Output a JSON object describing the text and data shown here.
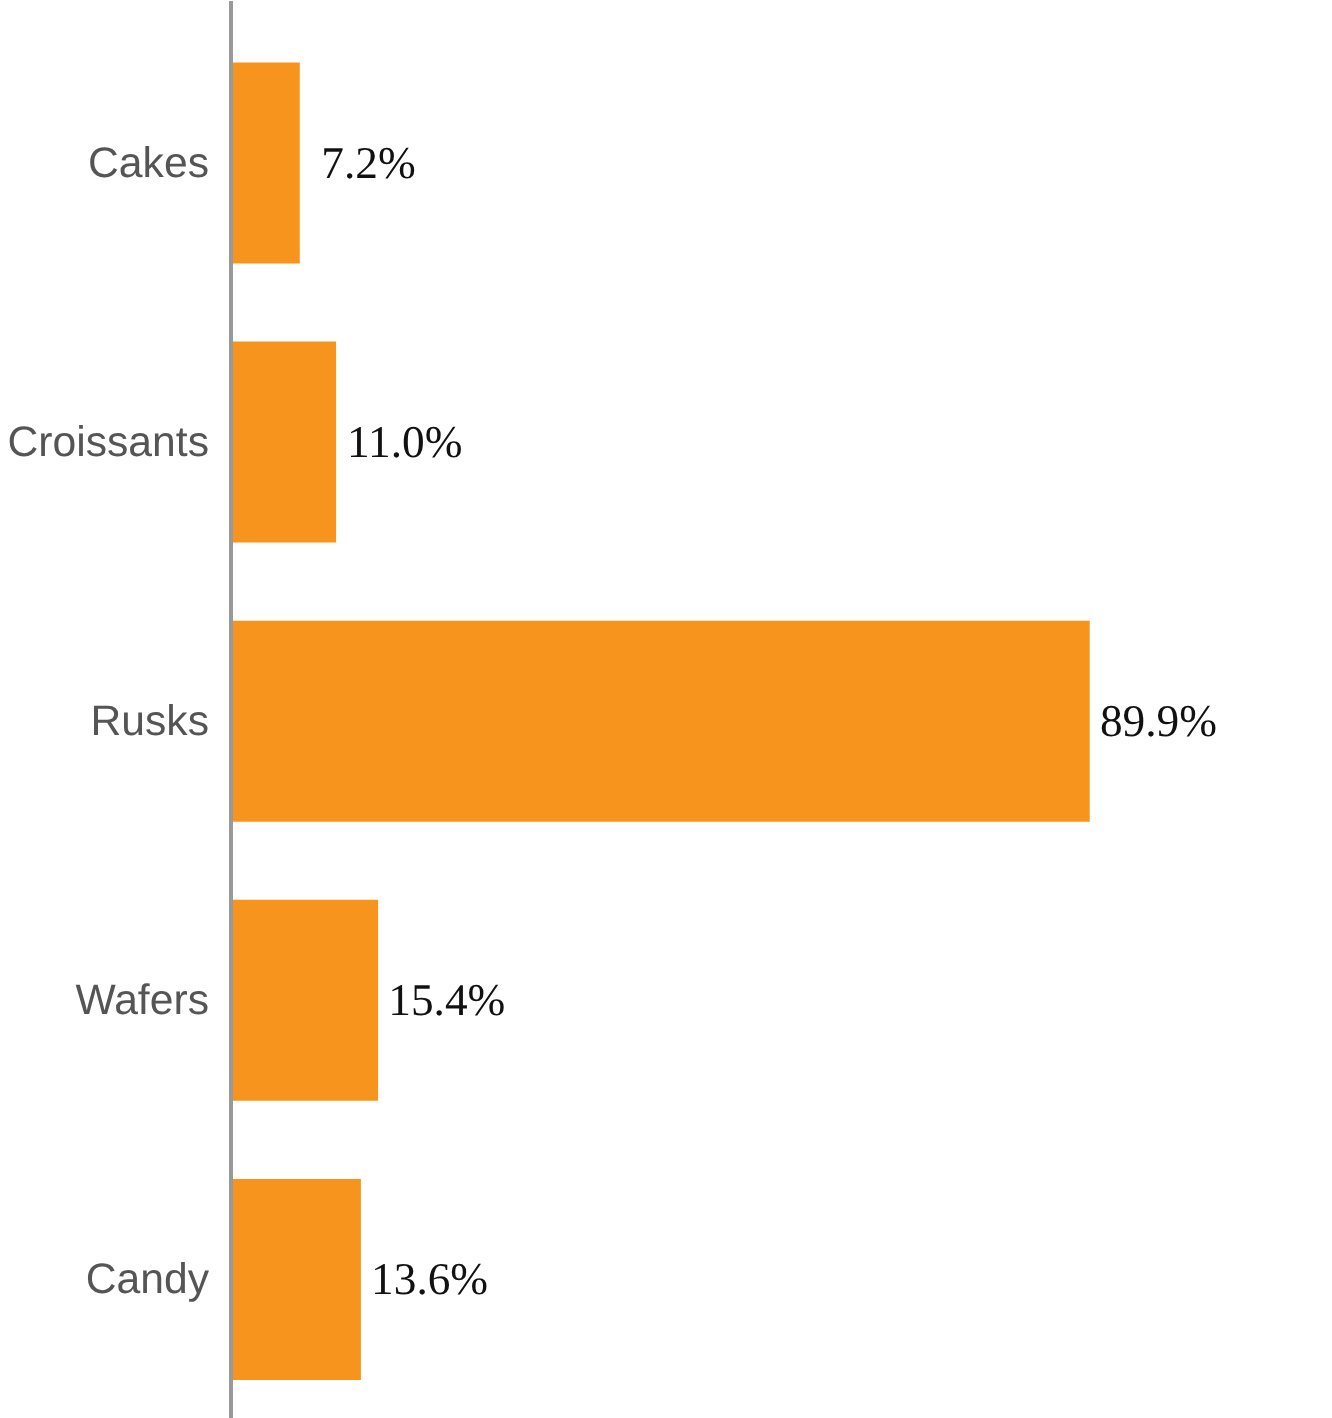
{
  "chart_data": {
    "type": "bar",
    "orientation": "horizontal",
    "categories": [
      "Cakes",
      "Croissants",
      "Rusks",
      "Wafers",
      "Candy"
    ],
    "values": [
      7.2,
      11.0,
      89.9,
      15.4,
      13.6
    ],
    "value_labels": [
      "7.2%",
      "11.0%",
      "89.9%",
      "15.4%",
      "13.6%"
    ],
    "color": "#f7941d"
  }
}
